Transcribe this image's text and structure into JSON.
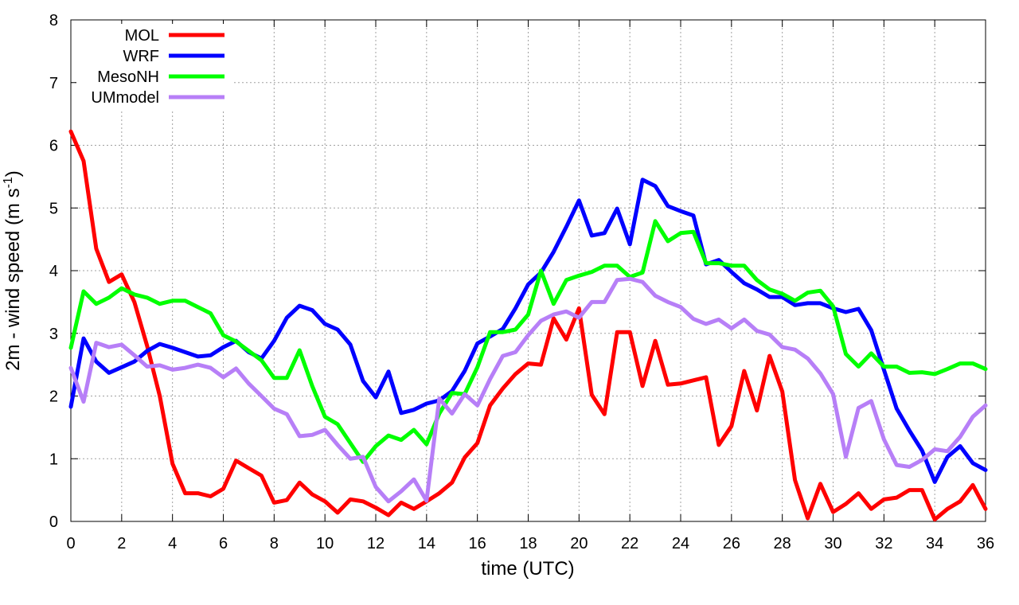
{
  "chart_data": {
    "type": "line",
    "title": "",
    "xlabel": "time (UTC)",
    "ylabel": "2m - wind speed (m s-1)",
    "ylabel_parts": {
      "main": "2m - wind speed  (m s",
      "sup": "-1",
      "close": ")"
    },
    "xlim": [
      0,
      36
    ],
    "ylim": [
      0,
      8
    ],
    "xticks": [
      0,
      2,
      4,
      6,
      8,
      10,
      12,
      14,
      16,
      18,
      20,
      22,
      24,
      26,
      28,
      30,
      32,
      34,
      36
    ],
    "yticks": [
      0,
      1,
      2,
      3,
      4,
      5,
      6,
      7,
      8
    ],
    "grid": true,
    "legend_position": "top-left",
    "series": [
      {
        "name": "MOL",
        "color": "#ff0000",
        "x": [
          0,
          0.5,
          1,
          1.5,
          2,
          2.5,
          3,
          3.5,
          4,
          4.5,
          5,
          5.5,
          6,
          6.5,
          7,
          7.5,
          8,
          8.5,
          9,
          9.5,
          10,
          10.5,
          11,
          11.5,
          12,
          12.5,
          13,
          13.5,
          14,
          14.5,
          15,
          15.5,
          16,
          16.5,
          17,
          17.5,
          18,
          18.5,
          19,
          19.5,
          20,
          20.5,
          21,
          21.5,
          22,
          22.5,
          23,
          23.5,
          24,
          24.5,
          25,
          25.5,
          26,
          26.5,
          27,
          27.5,
          28,
          28.5,
          29,
          29.5,
          30,
          30.5,
          31,
          31.5,
          32,
          32.5,
          33,
          33.5,
          34,
          34.5,
          35,
          35.5,
          36
        ],
        "values": [
          6.22,
          5.75,
          4.35,
          3.82,
          3.94,
          3.5,
          2.8,
          2.0,
          0.92,
          0.45,
          0.45,
          0.4,
          0.52,
          0.97,
          0.85,
          0.73,
          0.3,
          0.34,
          0.62,
          0.43,
          0.32,
          0.14,
          0.35,
          0.32,
          0.22,
          0.1,
          0.3,
          0.2,
          0.32,
          0.45,
          0.62,
          1.02,
          1.25,
          1.85,
          2.12,
          2.35,
          2.52,
          2.5,
          3.24,
          2.9,
          3.4,
          2.02,
          1.71,
          3.02,
          3.02,
          2.16,
          2.88,
          2.18,
          2.2,
          2.25,
          2.3,
          1.22,
          1.52,
          2.4,
          1.77,
          2.64,
          2.07,
          0.66,
          0.05,
          0.6,
          0.15,
          0.28,
          0.45,
          0.2,
          0.35,
          0.38,
          0.5,
          0.5,
          0.03,
          0.2,
          0.32,
          0.58,
          0.2
        ]
      },
      {
        "name": "WRF",
        "color": "#0000ff",
        "x": [
          0,
          0.5,
          1,
          1.5,
          2,
          2.5,
          3,
          3.5,
          4,
          4.5,
          5,
          5.5,
          6,
          6.5,
          7,
          7.5,
          8,
          8.5,
          9,
          9.5,
          10,
          10.5,
          11,
          11.5,
          12,
          12.5,
          13,
          13.5,
          14,
          14.5,
          15,
          15.5,
          16,
          16.5,
          17,
          17.5,
          18,
          18.5,
          19,
          19.5,
          20,
          20.5,
          21,
          21.5,
          22,
          22.5,
          23,
          23.5,
          24,
          24.5,
          25,
          25.5,
          26,
          26.5,
          27,
          27.5,
          28,
          28.5,
          29,
          29.5,
          30,
          30.5,
          31,
          31.5,
          32,
          32.5,
          33,
          33.5,
          34,
          34.5,
          35,
          35.5,
          36
        ],
        "values": [
          1.83,
          2.92,
          2.55,
          2.37,
          2.46,
          2.55,
          2.72,
          2.83,
          2.77,
          2.7,
          2.63,
          2.65,
          2.78,
          2.88,
          2.7,
          2.6,
          2.88,
          3.25,
          3.44,
          3.37,
          3.15,
          3.06,
          2.82,
          2.24,
          1.98,
          2.39,
          1.73,
          1.78,
          1.88,
          1.93,
          2.08,
          2.4,
          2.84,
          2.95,
          3.07,
          3.4,
          3.78,
          3.97,
          4.3,
          4.7,
          5.12,
          4.56,
          4.6,
          4.99,
          4.42,
          5.45,
          5.35,
          5.03,
          4.95,
          4.88,
          4.1,
          4.17,
          3.98,
          3.8,
          3.7,
          3.58,
          3.58,
          3.45,
          3.48,
          3.48,
          3.4,
          3.34,
          3.39,
          3.05,
          2.42,
          1.8,
          1.45,
          1.13,
          0.63,
          1.03,
          1.2,
          0.93,
          0.82
        ]
      },
      {
        "name": "MesoNH",
        "color": "#00ff00",
        "x": [
          0,
          0.5,
          1,
          1.5,
          2,
          2.5,
          3,
          3.5,
          4,
          4.5,
          5,
          5.5,
          6,
          6.5,
          7,
          7.5,
          8,
          8.5,
          9,
          9.5,
          10,
          10.5,
          11,
          11.5,
          12,
          12.5,
          13,
          13.5,
          14,
          14.5,
          15,
          15.5,
          16,
          16.5,
          17,
          17.5,
          18,
          18.5,
          19,
          19.5,
          20,
          20.5,
          21,
          21.5,
          22,
          22.5,
          23,
          23.5,
          24,
          24.5,
          25,
          25.5,
          26,
          26.5,
          27,
          27.5,
          28,
          28.5,
          29,
          29.5,
          30,
          30.5,
          31,
          31.5,
          32,
          32.5,
          33,
          33.5,
          34,
          34.5,
          35,
          35.5,
          36
        ],
        "values": [
          2.77,
          3.67,
          3.47,
          3.57,
          3.72,
          3.62,
          3.57,
          3.47,
          3.52,
          3.52,
          3.42,
          3.32,
          2.97,
          2.87,
          2.72,
          2.57,
          2.29,
          2.29,
          2.73,
          2.16,
          1.67,
          1.55,
          1.25,
          0.95,
          1.2,
          1.37,
          1.3,
          1.46,
          1.23,
          1.72,
          2.05,
          2.03,
          2.46,
          3.02,
          3.02,
          3.06,
          3.3,
          4.0,
          3.47,
          3.85,
          3.92,
          3.98,
          4.08,
          4.08,
          3.9,
          3.97,
          4.79,
          4.47,
          4.6,
          4.62,
          4.12,
          4.12,
          4.08,
          4.08,
          3.85,
          3.7,
          3.63,
          3.52,
          3.65,
          3.68,
          3.43,
          2.67,
          2.47,
          2.68,
          2.47,
          2.47,
          2.37,
          2.38,
          2.35,
          2.43,
          2.52,
          2.52,
          2.43
        ]
      },
      {
        "name": "UMmodel",
        "color": "#b77ff7",
        "x": [
          0,
          0.5,
          1,
          1.5,
          2,
          2.5,
          3,
          3.5,
          4,
          4.5,
          5,
          5.5,
          6,
          6.5,
          7,
          7.5,
          8,
          8.5,
          9,
          9.5,
          10,
          10.5,
          11,
          11.5,
          12,
          12.5,
          13,
          13.5,
          14,
          14.5,
          15,
          15.5,
          16,
          16.5,
          17,
          17.5,
          18,
          18.5,
          19,
          19.5,
          20,
          20.5,
          21,
          21.5,
          22,
          22.5,
          23,
          23.5,
          24,
          24.5,
          25,
          25.5,
          26,
          26.5,
          27,
          27.5,
          28,
          28.5,
          29,
          29.5,
          30,
          30.5,
          31,
          31.5,
          32,
          32.5,
          33,
          33.5,
          34,
          34.5,
          35,
          35.5,
          36
        ],
        "values": [
          2.45,
          1.91,
          2.85,
          2.78,
          2.82,
          2.65,
          2.47,
          2.49,
          2.42,
          2.45,
          2.5,
          2.45,
          2.3,
          2.44,
          2.2,
          2.0,
          1.8,
          1.71,
          1.36,
          1.38,
          1.46,
          1.22,
          1.0,
          1.03,
          0.55,
          0.32,
          0.48,
          0.67,
          0.33,
          1.96,
          1.72,
          2.03,
          1.85,
          2.27,
          2.64,
          2.7,
          2.97,
          3.2,
          3.3,
          3.35,
          3.25,
          3.5,
          3.5,
          3.85,
          3.87,
          3.82,
          3.6,
          3.5,
          3.42,
          3.23,
          3.15,
          3.22,
          3.08,
          3.22,
          3.04,
          2.98,
          2.78,
          2.74,
          2.6,
          2.36,
          2.03,
          1.03,
          1.81,
          1.92,
          1.31,
          0.9,
          0.87,
          0.98,
          1.15,
          1.12,
          1.35,
          1.67,
          1.85
        ]
      }
    ]
  }
}
